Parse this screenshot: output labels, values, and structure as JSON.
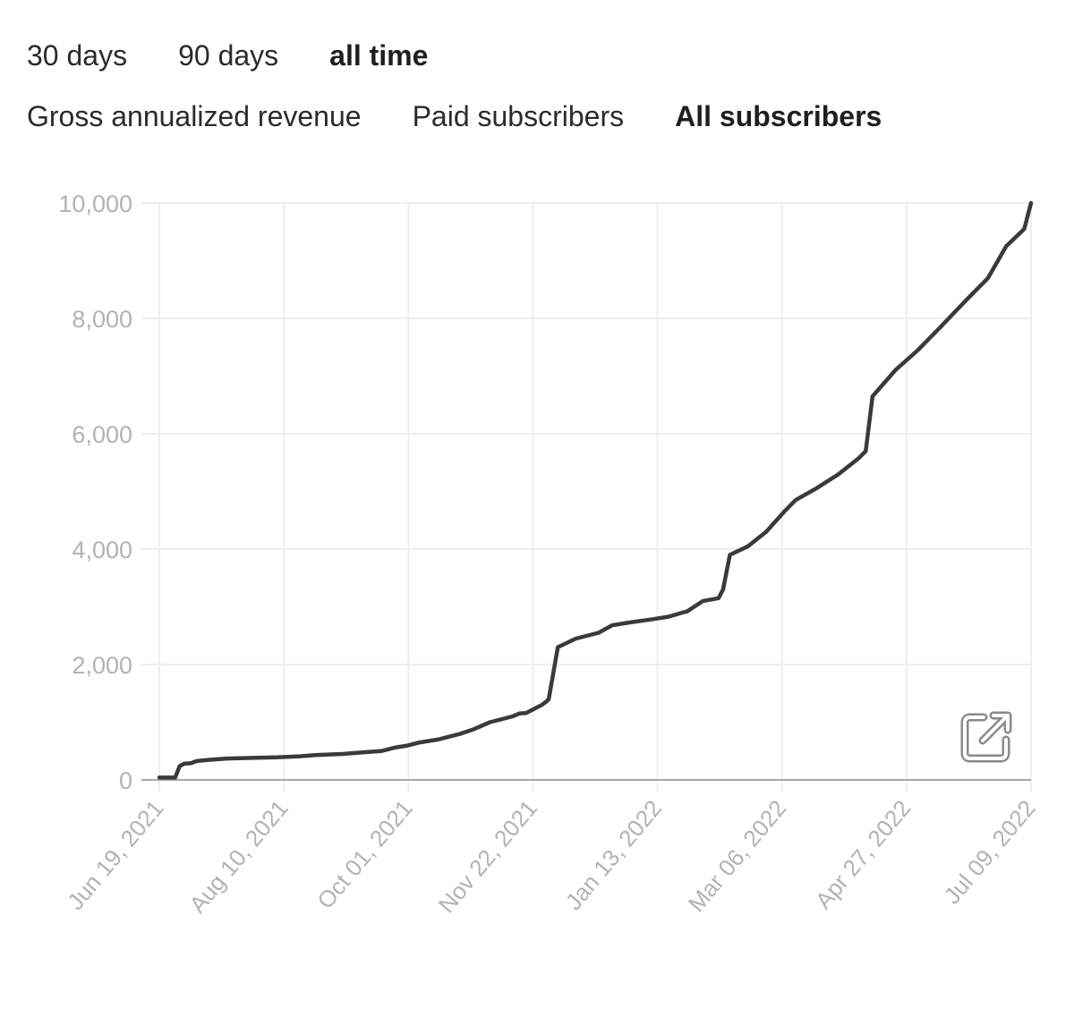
{
  "range_tabs": [
    {
      "label": "30 days",
      "active": false
    },
    {
      "label": "90 days",
      "active": false
    },
    {
      "label": "all time",
      "active": true
    }
  ],
  "metric_tabs": [
    {
      "label": "Gross annualized revenue",
      "active": false
    },
    {
      "label": "Paid subscribers",
      "active": false
    },
    {
      "label": "All subscribers",
      "active": true
    }
  ],
  "icons": {
    "open_external": "external-link-icon"
  },
  "colors": {
    "line": "#3a3a3a",
    "grid": "#eeeeee",
    "tick": "#b3b3b3",
    "baseline": "#a8a8a8"
  },
  "chart_data": {
    "type": "line",
    "title": "",
    "xlabel": "",
    "ylabel": "",
    "xlim": [
      "2021-06-19",
      "2022-07-09"
    ],
    "ylim": [
      0,
      10000
    ],
    "grid": true,
    "x_ticks": [
      "Jun 19, 2021",
      "Aug 10, 2021",
      "Oct 01, 2021",
      "Nov 22, 2021",
      "Jan 13, 2022",
      "Mar 06, 2022",
      "Apr 27, 2022",
      "Jul 09, 2022"
    ],
    "y_ticks": [
      "0",
      "2,000",
      "4,000",
      "6,000",
      "8,000",
      "10,000"
    ],
    "series": [
      {
        "name": "",
        "x": [
          "2021-06-19",
          "2021-06-26",
          "2021-06-28",
          "2021-06-30",
          "2021-07-03",
          "2021-07-05",
          "2021-07-06",
          "2021-07-12",
          "2021-07-19",
          "2021-07-28",
          "2021-08-10",
          "2021-08-20",
          "2021-08-27",
          "2021-09-08",
          "2021-09-18",
          "2021-09-25",
          "2021-10-01",
          "2021-10-06",
          "2021-10-12",
          "2021-10-20",
          "2021-10-30",
          "2021-11-05",
          "2021-11-12",
          "2021-11-22",
          "2021-11-25",
          "2021-11-28",
          "2021-12-05",
          "2021-12-07",
          "2021-12-08",
          "2021-12-12",
          "2021-12-20",
          "2021-12-30",
          "2022-01-05",
          "2022-01-13",
          "2022-01-22",
          "2022-01-30",
          "2022-02-05",
          "2022-02-07",
          "2022-02-14",
          "2022-02-21",
          "2022-02-23",
          "2022-02-26",
          "2022-03-06",
          "2022-03-14",
          "2022-03-22",
          "2022-03-27",
          "2022-04-05",
          "2022-04-15",
          "2022-04-24",
          "2022-04-27",
          "2022-04-30",
          "2022-05-10",
          "2022-05-20",
          "2022-05-30",
          "2022-06-10",
          "2022-06-20",
          "2022-06-28",
          "2022-07-06",
          "2022-07-09"
        ],
        "y": [
          40,
          40,
          240,
          280,
          290,
          320,
          330,
          350,
          370,
          380,
          390,
          410,
          430,
          450,
          480,
          500,
          560,
          590,
          650,
          700,
          800,
          880,
          1000,
          1100,
          1150,
          1160,
          1300,
          1360,
          1400,
          2300,
          2450,
          2550,
          2680,
          2730,
          2780,
          2830,
          2900,
          2920,
          3100,
          3150,
          3300,
          3900,
          4050,
          4300,
          4650,
          4850,
          5050,
          5300,
          5580,
          5700,
          6650,
          7100,
          7450,
          7850,
          8300,
          8700,
          9250,
          9550,
          10000
        ]
      }
    ]
  }
}
